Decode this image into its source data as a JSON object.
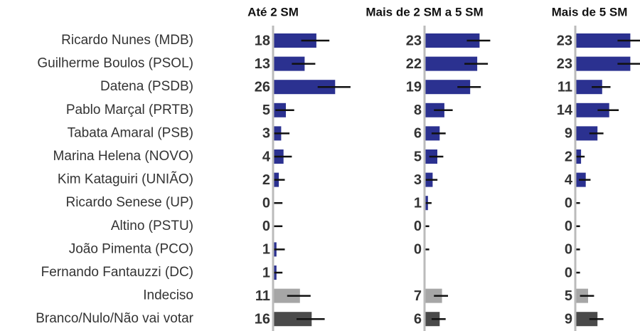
{
  "chart_data": {
    "type": "bar",
    "orientation": "horizontal",
    "categories": [
      "Ricardo Nunes (MDB)",
      "Guilherme Boulos (PSOL)",
      "Datena (PSDB)",
      "Pablo Marçal (PRTB)",
      "Tabata Amaral (PSB)",
      "Marina Helena (NOVO)",
      "Kim Kataguiri (UNIÃO)",
      "Ricardo Senese (UP)",
      "Altino (PSTU)",
      "João Pimenta (PCO)",
      "Fernando Fantauzzi (DC)",
      "Indeciso",
      "Branco/Nulo/Não vai votar"
    ],
    "category_colors": [
      "#2b3190",
      "#2b3190",
      "#2b3190",
      "#2b3190",
      "#2b3190",
      "#2b3190",
      "#2b3190",
      "#2b3190",
      "#2b3190",
      "#2b3190",
      "#2b3190",
      "#a6a6a6",
      "#4a4a4a"
    ],
    "xlim": [
      0,
      30
    ],
    "series": [
      {
        "name": "Até 2 SM",
        "values": [
          18,
          13,
          26,
          5,
          3,
          4,
          2,
          0,
          0,
          1,
          1,
          11,
          16
        ],
        "errors": [
          6,
          5,
          7,
          4,
          4,
          4,
          3,
          4,
          4,
          4,
          3,
          5,
          6
        ]
      },
      {
        "name": "Mais de 2 SM a 5 SM",
        "values": [
          23,
          22,
          19,
          8,
          6,
          5,
          3,
          1,
          0,
          0,
          null,
          7,
          6
        ],
        "errors": [
          5,
          5,
          5,
          4,
          3,
          3,
          2.5,
          2,
          2,
          2,
          null,
          3,
          3
        ]
      },
      {
        "name": "Mais de 5 SM",
        "values": [
          23,
          23,
          11,
          14,
          9,
          2,
          4,
          0,
          0,
          0,
          0,
          5,
          9
        ],
        "errors": [
          5,
          5,
          4,
          4.5,
          3,
          2,
          2.5,
          2,
          2,
          2,
          2,
          3,
          3
        ]
      }
    ]
  }
}
